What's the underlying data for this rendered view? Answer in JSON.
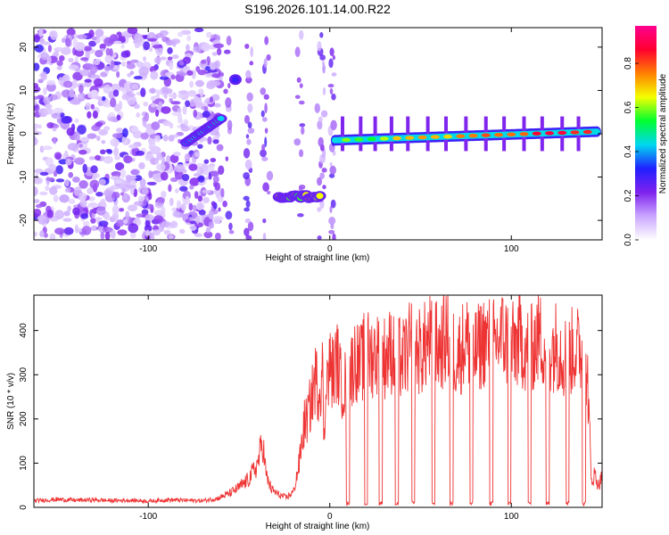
{
  "figure_title": "S196.2026.101.14.00.R22",
  "chart_data": [
    {
      "type": "heatmap",
      "title": "S196.2026.101.14.00.R22",
      "xlabel": "Height of straight line (km)",
      "ylabel": "Frequency (Hz)",
      "xlim": [
        -163,
        150
      ],
      "ylim": [
        -24.5,
        24.5
      ],
      "xticks": [
        -100,
        0,
        100
      ],
      "xtick_labels": [
        "-100",
        "0",
        "100"
      ],
      "yticks": [
        20,
        10,
        0,
        -10,
        -20
      ],
      "ytick_labels": [
        "20",
        "10",
        "0",
        "-10",
        "-20"
      ],
      "colorbar": {
        "label": "Normalized spectral amplitude",
        "range": [
          0,
          0.97
        ],
        "ticks": [
          0,
          0.2,
          0.4,
          0.6,
          0.8
        ],
        "tick_labels": [
          "0.0",
          "0.2",
          "0.4",
          "0.6",
          "0.8"
        ],
        "colors": [
          "#ffffff",
          "#c9a6ff",
          "#7f22ee",
          "#2020ff",
          "#00d8f0",
          "#00ff30",
          "#f4ff00",
          "#ff8000",
          "#ff0030",
          "#ff0090"
        ]
      },
      "features": [
        {
          "name": "noise",
          "x_range": [
            -163,
            -60
          ],
          "freq_range": [
            -24,
            24
          ],
          "amplitude": 0.1
        },
        {
          "name": "diagonal-trace",
          "x": [
            -79,
            -60
          ],
          "freq": [
            -2,
            3.5
          ],
          "amplitude": 0.35
        },
        {
          "name": "upper-blob",
          "x": [
            -52,
            -52
          ],
          "freq": [
            12.5,
            12.5
          ],
          "amplitude": 0.3
        },
        {
          "name": "lower-trace",
          "x": [
            -28,
            -5
          ],
          "freq": [
            -14.5,
            -14.5
          ],
          "amplitude": 0.55
        },
        {
          "name": "main-trace",
          "x": [
            3,
            148
          ],
          "freq": [
            -1.5,
            0.5
          ],
          "amplitude": 0.9
        }
      ]
    },
    {
      "type": "line",
      "xlabel": "Height of straight line (km)",
      "ylabel": "SNR (10 * v/v)",
      "xlim": [
        -163,
        150
      ],
      "ylim": [
        0,
        480
      ],
      "xticks": [
        -100,
        0,
        100
      ],
      "xtick_labels": [
        "-100",
        "0",
        "100"
      ],
      "yticks": [
        0,
        100,
        200,
        300,
        400
      ],
      "ytick_labels": [
        "0",
        "100",
        "200",
        "300",
        "400"
      ],
      "series": [
        {
          "name": "SNR",
          "color": "#ee3333",
          "x": [
            -163,
            -150,
            -140,
            -130,
            -120,
            -110,
            -100,
            -90,
            -80,
            -70,
            -62,
            -55,
            -50,
            -45,
            -40,
            -37,
            -35,
            -32,
            -28,
            -24,
            -20,
            -17,
            -14,
            -12,
            -10,
            -8,
            -6,
            -4,
            -3,
            -2,
            -1,
            0,
            2,
            4,
            6,
            8,
            10,
            12,
            14,
            16,
            18,
            20,
            22,
            25,
            30,
            35,
            40,
            45,
            50,
            55,
            60,
            65,
            70,
            75,
            80,
            85,
            90,
            95,
            100,
            105,
            110,
            115,
            120,
            125,
            130,
            135,
            140,
            142,
            144,
            146,
            148,
            150
          ],
          "values": [
            15,
            18,
            16,
            17,
            15,
            16,
            14,
            17,
            16,
            15,
            20,
            32,
            45,
            62,
            95,
            150,
            70,
            40,
            28,
            22,
            35,
            95,
            190,
            220,
            260,
            310,
            280,
            330,
            120,
            360,
            300,
            340,
            320,
            355,
            300,
            290,
            320,
            330,
            360,
            340,
            350,
            380,
            360,
            370,
            360,
            380,
            350,
            390,
            370,
            400,
            380,
            410,
            360,
            400,
            370,
            400,
            390,
            410,
            380,
            400,
            370,
            410,
            380,
            390,
            360,
            380,
            370,
            310,
            60,
            75,
            50,
            70
          ]
        }
      ],
      "drops": [
        10,
        20,
        28,
        37,
        46,
        57,
        67,
        78,
        89,
        99,
        110,
        120,
        131,
        140
      ]
    }
  ]
}
